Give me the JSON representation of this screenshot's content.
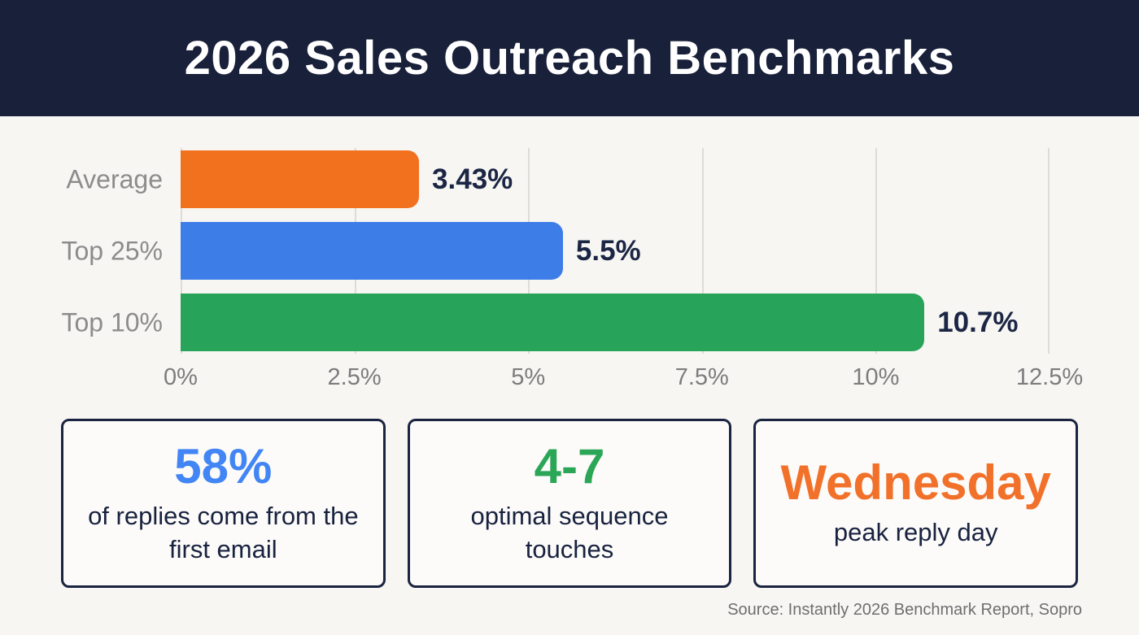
{
  "header": {
    "title": "2026 Sales Outreach Benchmarks"
  },
  "chart_data": {
    "type": "bar",
    "orientation": "horizontal",
    "title": "",
    "xlabel": "",
    "ylabel": "",
    "categories": [
      "Average",
      "Top 25%",
      "Top 10%"
    ],
    "values": [
      3.43,
      5.5,
      10.7
    ],
    "value_labels": [
      "3.43%",
      "5.5%",
      "10.7%"
    ],
    "bar_colors": [
      "#f2711f",
      "#3d7de8",
      "#28a45a"
    ],
    "xlim": [
      0,
      12.5
    ],
    "x_ticks": [
      "0%",
      "2.5%",
      "5%",
      "7.5%",
      "10%",
      "12.5%"
    ],
    "grid": true,
    "legend": false
  },
  "stat_cards": [
    {
      "value": "58%",
      "color": "#4285f4",
      "description": "of replies come from the first email"
    },
    {
      "value": "4-7",
      "color": "#2ba657",
      "description": "optimal sequence touches"
    },
    {
      "value": "Wednesday",
      "color": "#f2712a",
      "description": "peak reply day"
    }
  ],
  "source": "Source: Instantly 2026 Benchmark Report, Sopro",
  "colors": {
    "header_bg": "#18203a",
    "page_bg": "#f7f6f3",
    "dark_text": "#1b2644",
    "label_gray": "#8c8c8c"
  }
}
